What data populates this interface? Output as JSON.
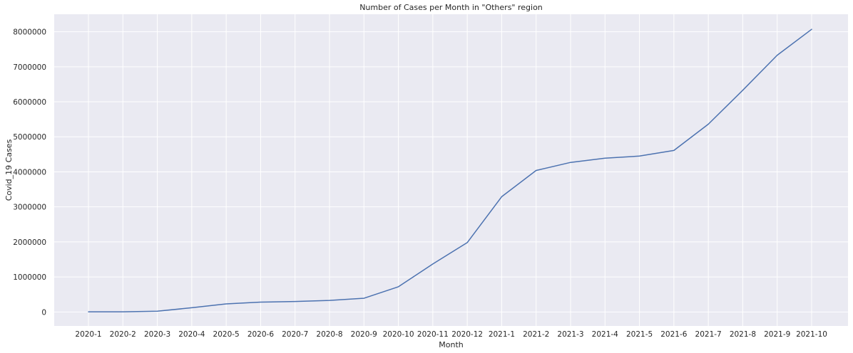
{
  "chart_data": {
    "type": "line",
    "title": "Number of Cases per Month in \"Others\" region",
    "xlabel": "Month",
    "ylabel": "Covid_19 Cases",
    "grid": true,
    "ylim": [
      -400000,
      8500000
    ],
    "yticks": [
      0,
      1000000,
      2000000,
      3000000,
      4000000,
      5000000,
      6000000,
      7000000,
      8000000
    ],
    "ytick_labels": [
      "0",
      "1000000",
      "2000000",
      "3000000",
      "4000000",
      "5000000",
      "6000000",
      "7000000",
      "8000000"
    ],
    "categories": [
      "2020-1",
      "2020-2",
      "2020-3",
      "2020-4",
      "2020-5",
      "2020-6",
      "2020-7",
      "2020-8",
      "2020-9",
      "2020-10",
      "2020-11",
      "2020-12",
      "2021-1",
      "2021-2",
      "2021-3",
      "2021-4",
      "2021-5",
      "2021-6",
      "2021-7",
      "2021-8",
      "2021-9",
      "2021-10"
    ],
    "series": [
      {
        "color": "#4c72b0",
        "values": [
          5000,
          5000,
          20000,
          120000,
          230000,
          280000,
          300000,
          330000,
          390000,
          720000,
          1370000,
          1980000,
          3290000,
          4040000,
          4270000,
          4390000,
          4450000,
          4610000,
          5360000,
          6330000,
          7330000,
          8070000
        ]
      }
    ]
  }
}
